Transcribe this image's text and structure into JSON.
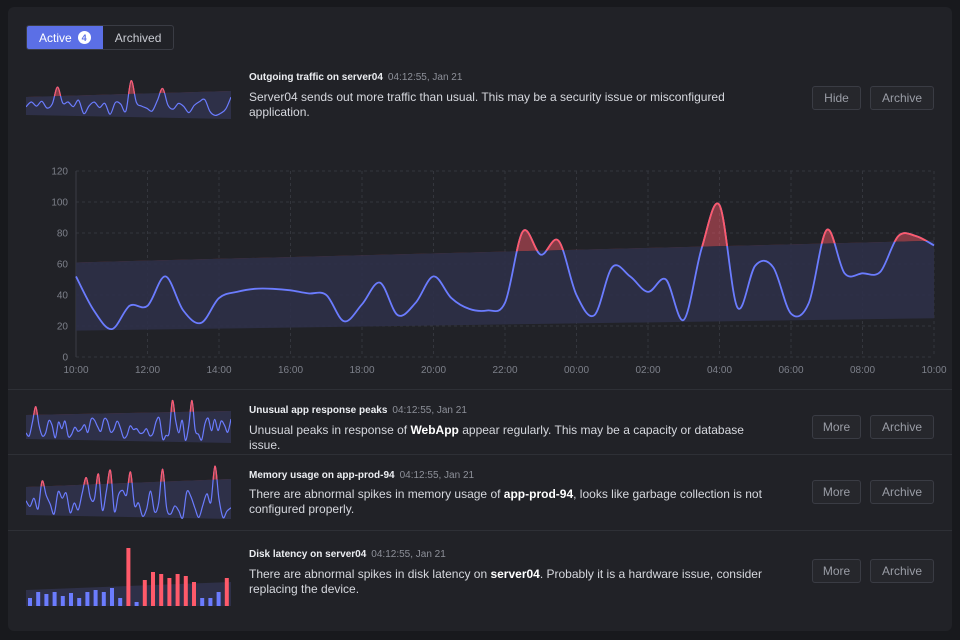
{
  "tabs": [
    {
      "label": "Active",
      "count": "4"
    },
    {
      "label": "Archived"
    }
  ],
  "alerts": [
    {
      "title": "Outgoing traffic on server04",
      "time": "04:12:55, Jan 21",
      "desc_parts": [
        "Server04 sends out more traffic than usual. This may be a security issue or misconfigured application."
      ],
      "buttons": [
        "Hide",
        "Archive"
      ]
    },
    {
      "title": "Unusual app response peaks",
      "time": "04:12:55, Jan 21",
      "desc_parts": [
        "Unusual peaks in response of ",
        "WebApp",
        " appear regularly. This may be a capacity or database issue."
      ],
      "buttons": [
        "More",
        "Archive"
      ]
    },
    {
      "title": "Memory usage on app-prod-94",
      "time": "04:12:55, Jan 21",
      "desc_parts": [
        "There are abnormal spikes in memory usage of ",
        "app-prod-94",
        ", looks like garbage collection is not configured properly."
      ],
      "buttons": [
        "More",
        "Archive"
      ]
    },
    {
      "title": "Disk latency on server04",
      "time": "04:12:55, Jan 21",
      "desc_parts": [
        "There are abnormal spikes in disk latency on ",
        "server04",
        ". Probably it is a hardware issue, consider replacing the device."
      ],
      "buttons": [
        "More",
        "Archive"
      ]
    }
  ],
  "colors": {
    "line": "#6b7cff",
    "anomaly": "#ff5a6a",
    "band": "#2e3048",
    "active_tab": "#5b6fe6"
  },
  "chart_data": {
    "type": "line",
    "title": "",
    "xlabel": "",
    "ylabel": "",
    "ylim": [
      0,
      120
    ],
    "yticks": [
      0,
      20,
      40,
      60,
      80,
      100,
      120
    ],
    "xticks": [
      "10:00",
      "12:00",
      "14:00",
      "16:00",
      "18:00",
      "20:00",
      "22:00",
      "00:00",
      "02:00",
      "04:00",
      "06:00",
      "08:00",
      "10:00"
    ],
    "grid": true,
    "x": [
      0,
      0.5,
      1,
      1.5,
      2,
      2.5,
      3,
      3.5,
      4,
      4.5,
      5,
      5.5,
      6,
      6.5,
      7,
      7.5,
      8,
      8.5,
      9,
      9.5,
      10,
      10.5,
      11,
      11.5,
      12,
      12.5,
      13,
      13.5,
      14,
      14.5,
      15,
      15.5,
      16,
      16.5,
      17,
      17.5,
      18,
      18.5,
      19,
      19.5,
      20,
      20.5,
      21,
      21.5,
      22,
      22.5,
      23,
      23.5,
      24
    ],
    "x_unit": "hours since 10:00",
    "series": [
      {
        "name": "",
        "values": [
          52,
          30,
          18,
          33,
          33,
          52,
          30,
          22,
          38,
          42,
          44,
          44,
          43,
          41,
          40,
          23,
          34,
          48,
          27,
          35,
          52,
          38,
          31,
          30,
          35,
          81,
          66,
          75,
          40,
          27,
          58,
          52,
          42,
          50,
          24,
          70,
          98,
          32,
          59,
          58,
          28,
          35,
          82,
          54,
          54,
          55,
          78,
          78,
          72
        ]
      }
    ],
    "band": {
      "lower_start": 17,
      "lower_end": 25,
      "upper_start": 61,
      "upper_end": 75
    }
  }
}
